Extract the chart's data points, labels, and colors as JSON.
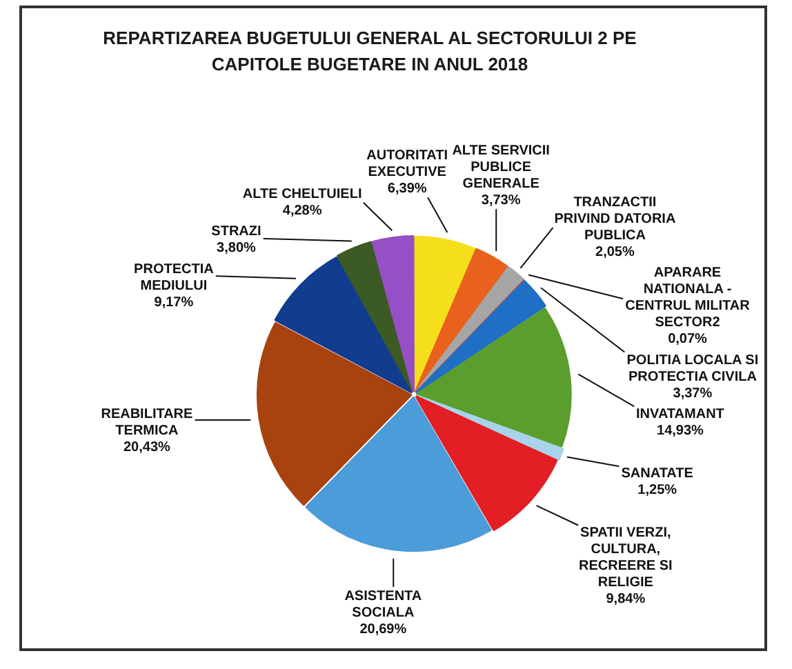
{
  "chart_data": {
    "type": "pie",
    "title": "REPARTIZAREA BUGETULUI GENERAL AL SECTORULUI 2 PE CAPITOLE BUGETARE IN ANUL 2018",
    "categories": [
      "AUTORITATI EXECUTIVE",
      "ALTE SERVICII PUBLICE GENERALE",
      "TRANZACTII PRIVIND DATORIA PUBLICA",
      "APARARE NATIONALA - CENTRUL MILITAR SECTOR2",
      "POLITIA LOCALA SI PROTECTIA CIVILA",
      "INVATAMANT",
      "SANATATE",
      "SPATII VERZI, CULTURA, RECREERE SI RELIGIE",
      "ASISTENTA SOCIALA",
      "REABILITARE TERMICA",
      "PROTECTIA MEDIULUI",
      "STRAZI",
      "ALTE CHELTUIELI"
    ],
    "values": [
      6.39,
      3.73,
      2.05,
      0.07,
      3.37,
      14.93,
      1.25,
      9.84,
      20.69,
      20.43,
      9.17,
      3.8,
      4.28
    ],
    "colors": [
      "#f5df1c",
      "#e8621d",
      "#a6a6a6",
      "#c0504d",
      "#1f6fc6",
      "#5b9e2d",
      "#a9d3ea",
      "#e31e24",
      "#4b9cd8",
      "#a8420f",
      "#123d8f",
      "#3c5a24",
      "#9450c4"
    ],
    "value_labels": [
      "6,39%",
      "3,73%",
      "2,05%",
      "0,07%",
      "3,37%",
      "14,93%",
      "1,25%",
      "9,84%",
      "20,69%",
      "20,43%",
      "9,17%",
      "3,80%",
      "4,28%"
    ]
  }
}
